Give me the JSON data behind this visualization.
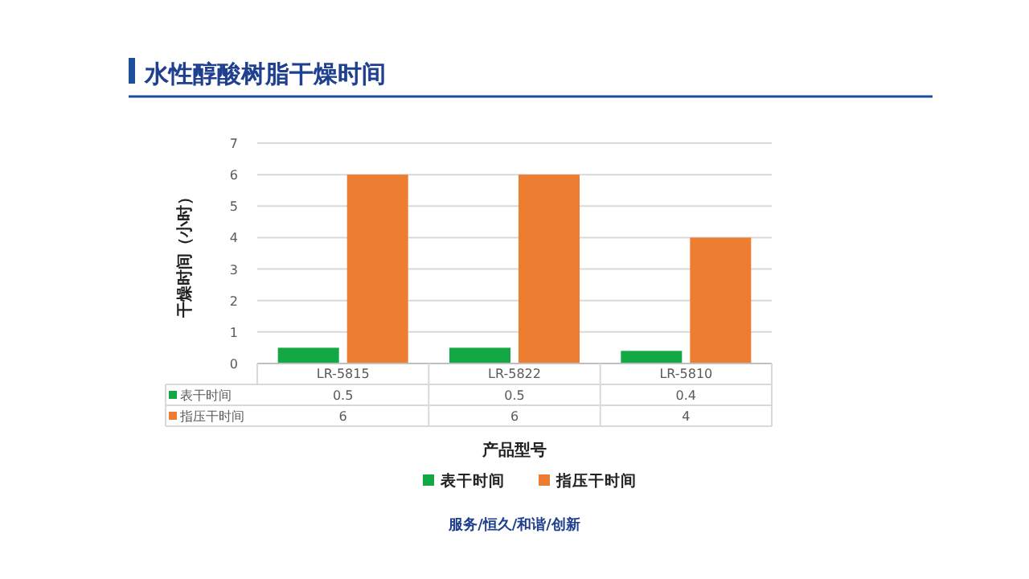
{
  "chart_data": {
    "type": "bar",
    "title": "水性醇酸树脂干燥时间",
    "xlabel": "产品型号",
    "ylabel": "干燥时间（小时）",
    "categories": [
      "LR-5815",
      "LR-5822",
      "LR-5810"
    ],
    "series": [
      {
        "name": "表干时间",
        "color": "#13a843",
        "values": [
          0.5,
          0.5,
          0.4
        ]
      },
      {
        "name": "指压干时间",
        "color": "#ed7d31",
        "values": [
          6,
          6,
          4
        ]
      }
    ],
    "ylim": [
      0,
      7
    ],
    "yticks": [
      0,
      1,
      2,
      3,
      4,
      5,
      6,
      7
    ],
    "grid": "y",
    "legend": "bottom",
    "data_labels": true,
    "annotations": [
      "服务/恒久/和谐/创新"
    ]
  }
}
